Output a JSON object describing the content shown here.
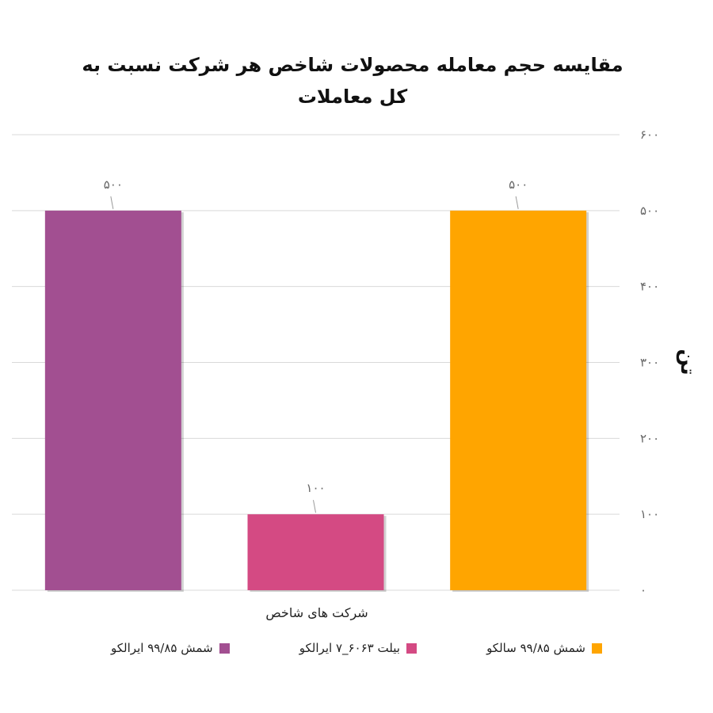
{
  "chart_data": {
    "type": "bar",
    "title": "مقایسه حجم معامله  محصولات شاخص هر شرکت نسبت به کل معاملات",
    "xlabel": "شرکت های شاخص",
    "ylabel": "تن",
    "ylim": [
      0,
      600
    ],
    "yticks": [
      0,
      100,
      200,
      300,
      400,
      500,
      600
    ],
    "y_axis_side": "right",
    "grid": true,
    "legend_position": "bottom",
    "categories": [
      "شمش ۹۹/۸۵ سالکو",
      "بیلت ۶۰۶۳_۷ ایرالکو",
      "شمش ۹۹/۸۵ ایرالکو"
    ],
    "values": [
      500,
      100,
      500
    ],
    "data_labels": [
      "۵۰۰",
      "۱۰۰",
      "۵۰۰"
    ],
    "colors": [
      "#FFA500",
      "#D44A83",
      "#A24F91"
    ]
  }
}
